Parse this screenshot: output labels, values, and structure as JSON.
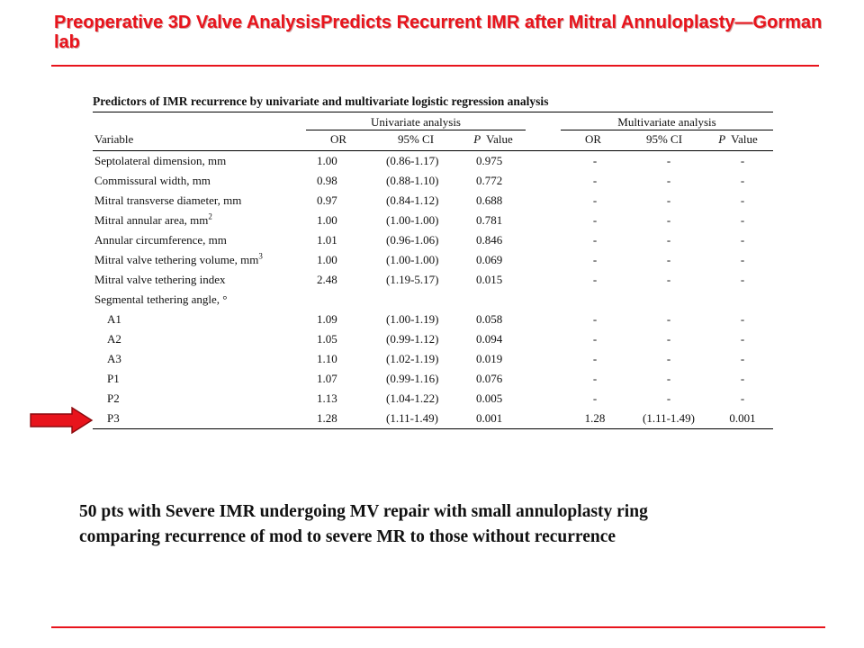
{
  "slide": {
    "title": "Preoperative 3D Valve AnalysisPredicts Recurrent IMR after Mitral Annuloplasty—Gorman lab",
    "accent_color": "#e8141c",
    "summary_line1": "50 pts with Severe IMR undergoing MV repair with small annuloplasty ring",
    "summary_line2": "comparing recurrence of mod to severe MR to those without recurrence"
  },
  "table": {
    "caption": "Predictors of IMR recurrence by univariate and multivariate logistic regression analysis",
    "group_univariate": "Univariate analysis",
    "group_multivariate": "Multivariate analysis",
    "headers": {
      "variable": "Variable",
      "or": "OR",
      "ci": "95% CI",
      "p_italic": "P",
      "value": "Value"
    },
    "rows": [
      {
        "variable": "Septolateral dimension, mm",
        "or": "1.00",
        "ci": "(0.86-1.17)",
        "p": "0.975",
        "mor": "-",
        "mci": "-",
        "mp": "-"
      },
      {
        "variable": "Commissural width, mm",
        "or": "0.98",
        "ci": "(0.88-1.10)",
        "p": "0.772",
        "mor": "-",
        "mci": "-",
        "mp": "-"
      },
      {
        "variable": "Mitral transverse diameter, mm",
        "or": "0.97",
        "ci": "(0.84-1.12)",
        "p": "0.688",
        "mor": "-",
        "mci": "-",
        "mp": "-"
      },
      {
        "variable": "Mitral annular area, mm",
        "sup": "2",
        "or": "1.00",
        "ci": "(1.00-1.00)",
        "p": "0.781",
        "mor": "-",
        "mci": "-",
        "mp": "-"
      },
      {
        "variable": "Annular circumference, mm",
        "or": "1.01",
        "ci": "(0.96-1.06)",
        "p": "0.846",
        "mor": "-",
        "mci": "-",
        "mp": "-"
      },
      {
        "variable": "Mitral valve tethering volume, mm",
        "sup": "3",
        "or": "1.00",
        "ci": "(1.00-1.00)",
        "p": "0.069",
        "mor": "-",
        "mci": "-",
        "mp": "-"
      },
      {
        "variable": "Mitral valve tethering index",
        "or": "2.48",
        "ci": "(1.19-5.17)",
        "p": "0.015",
        "mor": "-",
        "mci": "-",
        "mp": "-"
      },
      {
        "variable": "Segmental tethering angle, °",
        "or": "",
        "ci": "",
        "p": "",
        "mor": "",
        "mci": "",
        "mp": ""
      },
      {
        "variable": "A1",
        "sub": true,
        "or": "1.09",
        "ci": "(1.00-1.19)",
        "p": "0.058",
        "mor": "-",
        "mci": "-",
        "mp": "-"
      },
      {
        "variable": "A2",
        "sub": true,
        "or": "1.05",
        "ci": "(0.99-1.12)",
        "p": "0.094",
        "mor": "-",
        "mci": "-",
        "mp": "-"
      },
      {
        "variable": "A3",
        "sub": true,
        "or": "1.10",
        "ci": "(1.02-1.19)",
        "p": "0.019",
        "mor": "-",
        "mci": "-",
        "mp": "-"
      },
      {
        "variable": "P1",
        "sub": true,
        "or": "1.07",
        "ci": "(0.99-1.16)",
        "p": "0.076",
        "mor": "-",
        "mci": "-",
        "mp": "-"
      },
      {
        "variable": "P2",
        "sub": true,
        "or": "1.13",
        "ci": "(1.04-1.22)",
        "p": "0.005",
        "mor": "-",
        "mci": "-",
        "mp": "-"
      },
      {
        "variable": "P3",
        "sub": true,
        "or": "1.28",
        "ci": "(1.11-1.49)",
        "p": "0.001",
        "mor": "1.28",
        "mci": "(1.11-1.49)",
        "mp": "0.001"
      }
    ]
  },
  "arrow": {
    "icon": "red-right-arrow-icon",
    "color": "#e8141c",
    "points_to_row": "P3"
  }
}
